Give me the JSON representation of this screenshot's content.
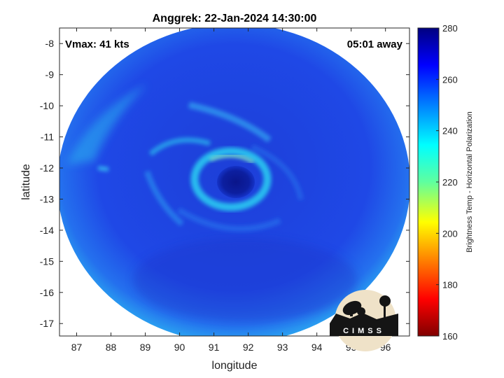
{
  "title": "Anggrek: 22-Jan-2024 14:30:00",
  "vmax_label": "Vmax: 41 kts",
  "away_label": "05:01 away",
  "xlabel": "longitude",
  "ylabel": "latitude",
  "colorbar_label": "Brightness Temp - Horizontal Polarization",
  "logo_text": "CIMSS",
  "map_data": {
    "type": "heatmap",
    "xlim": [
      86.5,
      96.7
    ],
    "ylim": [
      -17.4,
      -7.5
    ],
    "x_ticks": [
      87,
      88,
      89,
      90,
      91,
      92,
      93,
      94,
      95,
      96
    ],
    "y_ticks": [
      -8,
      -9,
      -10,
      -11,
      -12,
      -13,
      -14,
      -15,
      -16,
      -17
    ],
    "colorbar": {
      "min": 160,
      "max": 280,
      "ticks": [
        160,
        180,
        200,
        220,
        240,
        260,
        280
      ]
    },
    "storm_center": {
      "lon": 91.6,
      "lat": -12.4
    },
    "swath_center": {
      "lon": 91.6,
      "lat": -12.4
    },
    "colors": {
      "background": "#1f3fe0",
      "eye": "#0a1a8a",
      "rainband": "#1fc8f0",
      "edge": "#25a8ee"
    }
  }
}
